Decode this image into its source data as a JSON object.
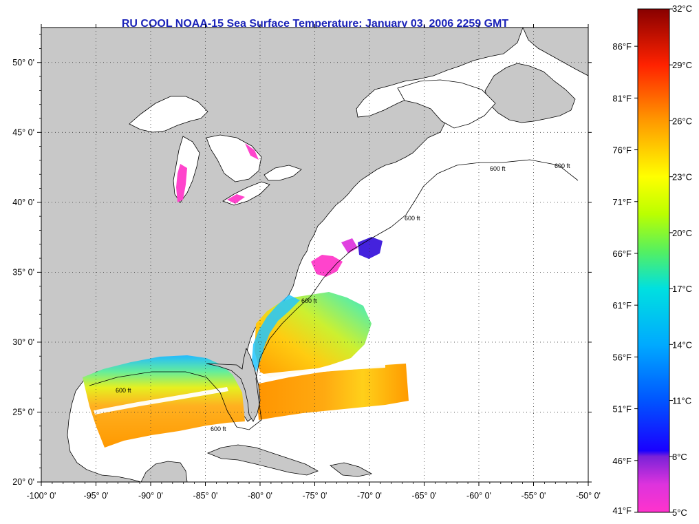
{
  "title": "RU COOL  NOAA-15  Sea Surface Temperature:  January 03, 2006 2259 GMT",
  "map": {
    "lon_range": [
      -100,
      -50
    ],
    "lat_range": [
      20,
      52.5
    ],
    "x_ticks": [
      {
        "value": -100,
        "label": "-100° 0'"
      },
      {
        "value": -95,
        "label": "-95° 0'"
      },
      {
        "value": -90,
        "label": "-90° 0'"
      },
      {
        "value": -85,
        "label": "-85° 0'"
      },
      {
        "value": -80,
        "label": "-80° 0'"
      },
      {
        "value": -75,
        "label": "-75° 0'"
      },
      {
        "value": -70,
        "label": "-70° 0'"
      },
      {
        "value": -65,
        "label": "-65° 0'"
      },
      {
        "value": -60,
        "label": "-60° 0'"
      },
      {
        "value": -55,
        "label": "-55° 0'"
      },
      {
        "value": -50,
        "label": "-50° 0'"
      }
    ],
    "y_ticks": [
      {
        "value": 20,
        "label": "20° 0'"
      },
      {
        "value": 25,
        "label": "25° 0'"
      },
      {
        "value": 30,
        "label": "30° 0'"
      },
      {
        "value": 35,
        "label": "35° 0'"
      },
      {
        "value": 40,
        "label": "40° 0'"
      },
      {
        "value": 45,
        "label": "45° 0'"
      },
      {
        "value": 50,
        "label": "50° 0'"
      }
    ],
    "grid": "dotted",
    "depth_contour_label": "600 ft",
    "colors": {
      "land": "#c8c8c8",
      "ocean_no_data": "#ffffff",
      "coast": "#000000"
    }
  },
  "colorbar": {
    "range_c": [
      5,
      32
    ],
    "celsius_labels": [
      {
        "value": 32,
        "label": "32°C"
      },
      {
        "value": 29,
        "label": "29°C"
      },
      {
        "value": 26,
        "label": "26°C"
      },
      {
        "value": 23,
        "label": "23°C"
      },
      {
        "value": 20,
        "label": "20°C"
      },
      {
        "value": 17,
        "label": "17°C"
      },
      {
        "value": 14,
        "label": "14°C"
      },
      {
        "value": 11,
        "label": "11°C"
      },
      {
        "value": 8,
        "label": "8°C"
      },
      {
        "value": 5,
        "label": "5°C"
      }
    ],
    "fahrenheit_labels": [
      {
        "value": 86,
        "label": "86°F"
      },
      {
        "value": 81,
        "label": "81°F"
      },
      {
        "value": 76,
        "label": "76°F"
      },
      {
        "value": 71,
        "label": "71°F"
      },
      {
        "value": 66,
        "label": "66°F"
      },
      {
        "value": 61,
        "label": "61°F"
      },
      {
        "value": 56,
        "label": "56°F"
      },
      {
        "value": 51,
        "label": "51°F"
      },
      {
        "value": 46,
        "label": "46°F"
      },
      {
        "value": 41,
        "label": "41°F"
      }
    ],
    "stops": [
      {
        "c": 5,
        "color": "#ff33cc"
      },
      {
        "c": 6.5,
        "color": "#dd33dd"
      },
      {
        "c": 8,
        "color": "#7a22d8"
      },
      {
        "c": 8.3,
        "color": "#1a00ff"
      },
      {
        "c": 11,
        "color": "#0055ff"
      },
      {
        "c": 14,
        "color": "#00aaff"
      },
      {
        "c": 17,
        "color": "#00e0e0"
      },
      {
        "c": 19,
        "color": "#55f060"
      },
      {
        "c": 21,
        "color": "#bbff00"
      },
      {
        "c": 23,
        "color": "#ffff00"
      },
      {
        "c": 26,
        "color": "#ff9900"
      },
      {
        "c": 29,
        "color": "#ff2200"
      },
      {
        "c": 32,
        "color": "#880000"
      }
    ]
  }
}
